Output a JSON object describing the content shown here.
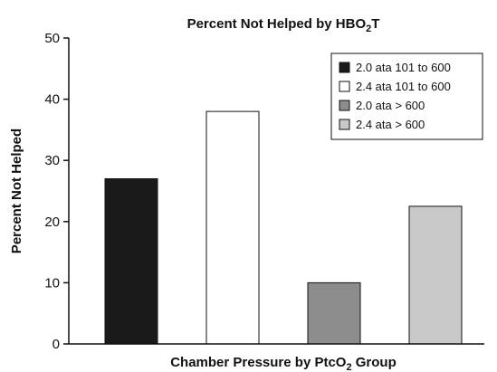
{
  "chart_data": {
    "type": "bar",
    "title": {
      "main": "Percent Not Helped by HBO",
      "sub": "2",
      "suffix": "T"
    },
    "xlabel": {
      "main": "Chamber Pressure by PtcO",
      "sub": "2",
      "suffix": " Group"
    },
    "ylabel": "Percent Not Helped",
    "ylim": [
      0,
      50
    ],
    "yticks": [
      0,
      10,
      20,
      30,
      40,
      50
    ],
    "grid": false,
    "legend_position": "top-right",
    "series": [
      {
        "name": "2.0 ata 101 to 600",
        "value": 27,
        "color": "#1a1a1a"
      },
      {
        "name": "2.4 ata 101 to 600",
        "value": 38,
        "color": "#ffffff"
      },
      {
        "name": "2.0 ata > 600",
        "value": 10,
        "color": "#8c8c8c"
      },
      {
        "name": "2.4 ata > 600",
        "value": 22.5,
        "color": "#c8c8c8"
      }
    ],
    "edge_color": "#111111"
  }
}
